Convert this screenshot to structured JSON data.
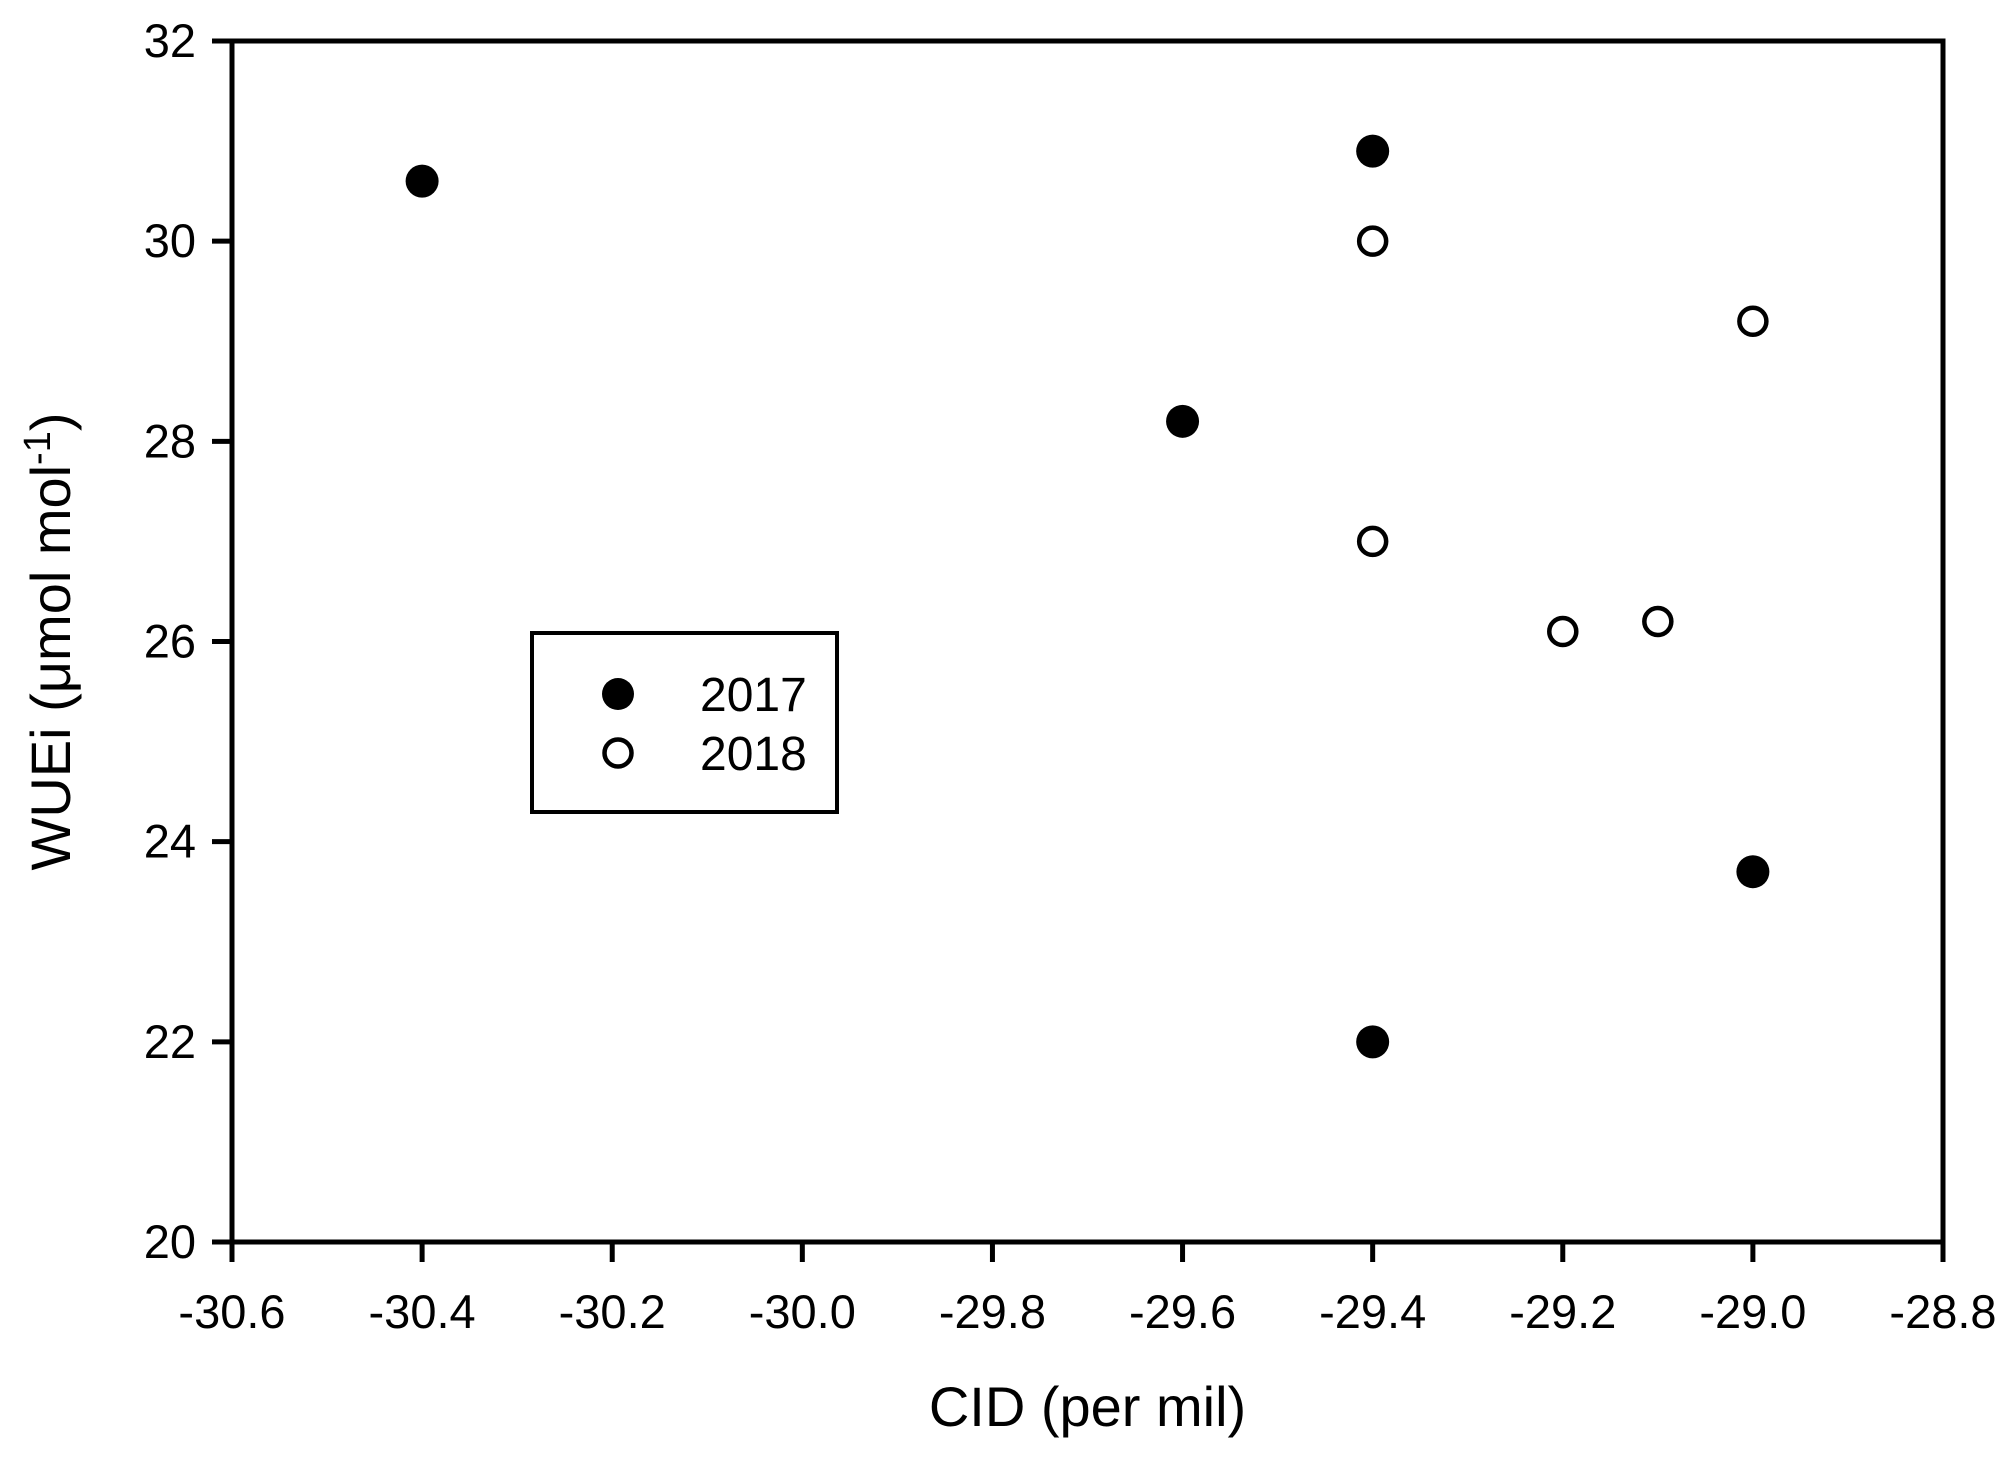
{
  "chart_data": {
    "type": "scatter",
    "title": "",
    "xlabel": "CID (per mil)",
    "ylabel": "WUEi (μmol mol⁻¹)",
    "ylabel_parts": {
      "prefix": "WUEi (μmol mol",
      "superscript": "-1",
      "suffix": ")"
    },
    "xlim": [
      -30.6,
      -28.8
    ],
    "ylim": [
      20,
      32
    ],
    "x_ticks": [
      -30.6,
      -30.4,
      -30.2,
      -30.0,
      -29.8,
      -29.6,
      -29.4,
      -29.2,
      -29.0,
      -28.8
    ],
    "x_tick_labels": [
      "-30.6",
      "-30.4",
      "-30.2",
      "-30.0",
      "-29.8",
      "-29.6",
      "-29.4",
      "-29.2",
      "-29.0",
      "-28.8"
    ],
    "y_ticks": [
      20,
      22,
      24,
      26,
      28,
      30,
      32
    ],
    "y_tick_labels": [
      "20",
      "22",
      "24",
      "26",
      "28",
      "30",
      "32"
    ],
    "grid": false,
    "legend_position": "inside-center-left",
    "series": [
      {
        "name": "2017",
        "marker": "filled-circle",
        "color": "#000000",
        "points": [
          [
            -30.4,
            30.6
          ],
          [
            -29.4,
            30.9
          ],
          [
            -29.6,
            28.2
          ],
          [
            -29.4,
            22.0
          ],
          [
            -29.0,
            23.7
          ]
        ]
      },
      {
        "name": "2018",
        "marker": "open-circle",
        "color": "#000000",
        "points": [
          [
            -29.4,
            30.0
          ],
          [
            -29.0,
            29.2
          ],
          [
            -29.4,
            27.0
          ],
          [
            -29.2,
            26.1
          ],
          [
            -29.1,
            26.2
          ]
        ]
      }
    ]
  },
  "legend": {
    "items": [
      {
        "label": "2017",
        "marker": "filled-circle"
      },
      {
        "label": "2018",
        "marker": "open-circle"
      }
    ]
  },
  "colors": {
    "foreground": "#000000",
    "background": "#ffffff"
  }
}
